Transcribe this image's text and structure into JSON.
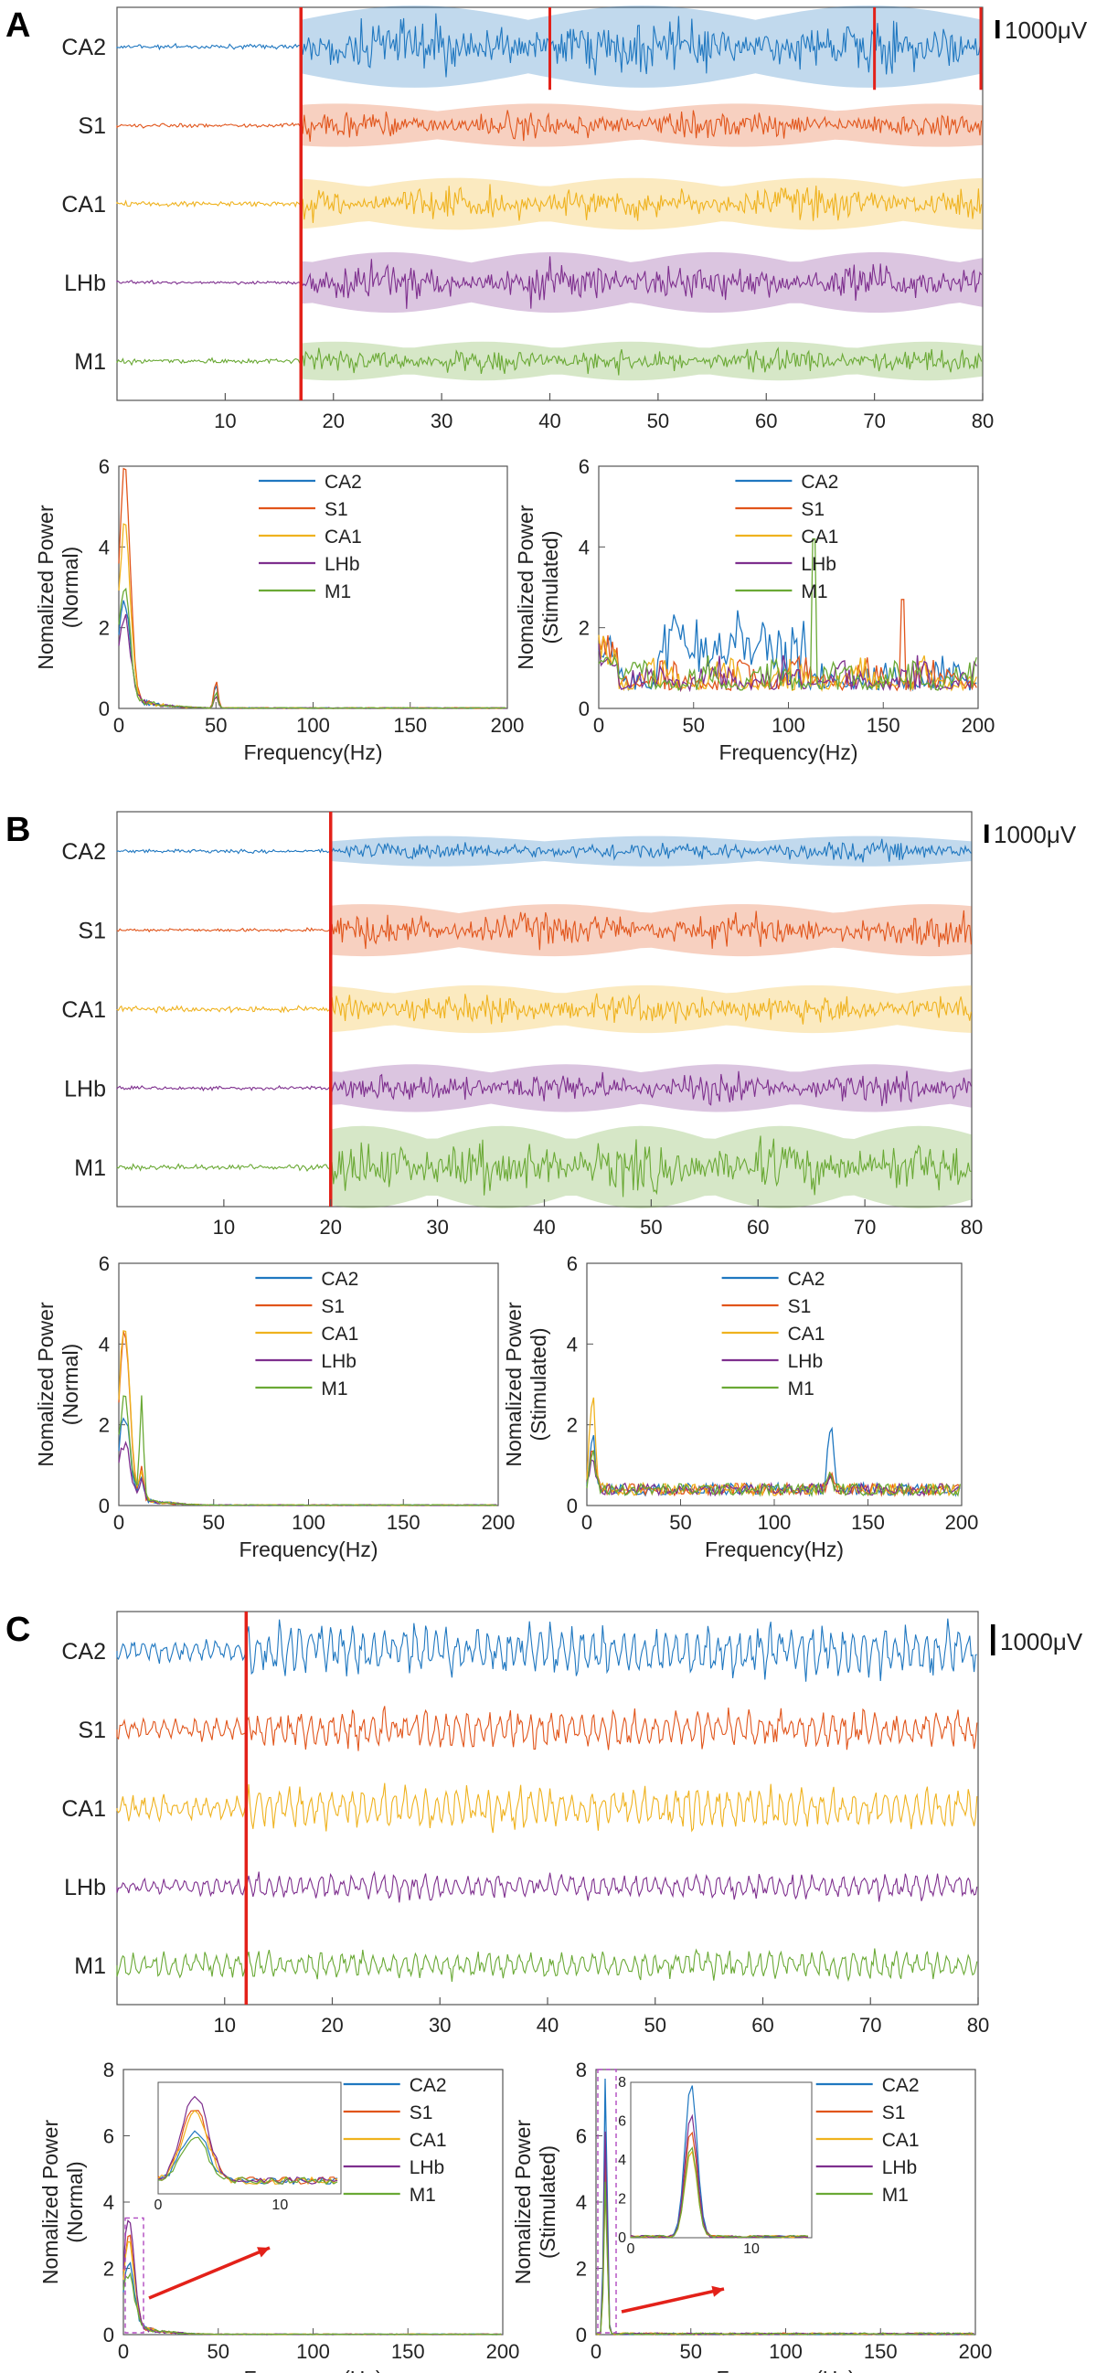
{
  "colors": {
    "CA2": "#1f77c0",
    "S1": "#e1551b",
    "CA1": "#efb21e",
    "LHb": "#7e2f8e",
    "M1": "#6aa935",
    "marker": "#e32119",
    "inset_arrow": "#e32119"
  },
  "panels": [
    {
      "label": "A",
      "scale_label": "1000μV",
      "trace_chart": {
        "type": "line",
        "channels": [
          "CA2",
          "S1",
          "CA1",
          "LHb",
          "M1"
        ],
        "xlim": [
          0,
          80
        ],
        "xticks": [
          10,
          20,
          30,
          40,
          50,
          60,
          70,
          80
        ],
        "xtick_labels": [
          "10",
          "20",
          "30",
          "40",
          "50",
          "60",
          "70",
          "80"
        ],
        "stim_onset": 17,
        "extra_markers_CA2": [
          40,
          70,
          80
        ],
        "pre_amp": [
          0.08,
          0.08,
          0.1,
          0.06,
          0.1
        ],
        "post_amp": [
          0.95,
          0.5,
          0.6,
          0.7,
          0.45
        ],
        "bursty": true
      },
      "spectra": [
        {
          "ylabel_line1": "Nomalized Power",
          "ylabel_line2": "(Normal)",
          "xlabel": "Frequency(Hz)",
          "xlim": [
            0,
            200
          ],
          "ylim": [
            0,
            6
          ],
          "xticks": [
            "0",
            "50",
            "100",
            "150",
            "200"
          ],
          "yticks": [
            "0",
            "2",
            "4",
            "6"
          ],
          "legend": [
            "CA2",
            "S1",
            "CA1",
            "LHb",
            "M1"
          ],
          "peaks": [
            {
              "f": 3,
              "p": [
                2.3,
                5.6,
                4.2,
                2.0,
                2.6
              ]
            },
            {
              "f": 50,
              "p": [
                0.6,
                0.7,
                0.3,
                0.3,
                0.4
              ]
            }
          ],
          "kind": "normal"
        },
        {
          "ylabel_line1": "Nomalized Power",
          "ylabel_line2": "(Stimulated)",
          "xlabel": "Frequency(Hz)",
          "xlim": [
            0,
            200
          ],
          "ylim": [
            0,
            6
          ],
          "xticks": [
            "0",
            "50",
            "100",
            "150",
            "200"
          ],
          "yticks": [
            "0",
            "2",
            "4",
            "6"
          ],
          "legend": [
            "CA2",
            "S1",
            "CA1",
            "LHb",
            "M1"
          ],
          "peaks": [
            {
              "f": 113,
              "p": [
                0.8,
                0.6,
                0.7,
                0.6,
                4.2
              ]
            },
            {
              "f": 160,
              "p": [
                0.5,
                2.7,
                0.5,
                0.6,
                0.4
              ]
            }
          ],
          "kind": "stim_broad"
        }
      ]
    },
    {
      "label": "B",
      "scale_label": "1000μV",
      "trace_chart": {
        "type": "line",
        "channels": [
          "CA2",
          "S1",
          "CA1",
          "LHb",
          "M1"
        ],
        "xlim": [
          0,
          80
        ],
        "xticks": [
          10,
          20,
          30,
          40,
          50,
          60,
          70,
          80
        ],
        "xtick_labels": [
          "10",
          "20",
          "30",
          "40",
          "50",
          "60",
          "70",
          "80"
        ],
        "stim_onset": 20,
        "extra_markers_CA2": [],
        "pre_amp": [
          0.06,
          0.06,
          0.1,
          0.06,
          0.1
        ],
        "post_amp": [
          0.35,
          0.6,
          0.55,
          0.55,
          0.95
        ],
        "bursty": true
      },
      "spectra": [
        {
          "ylabel_line1": "Nomalized Power",
          "ylabel_line2": "(Normal)",
          "xlabel": "Frequency(Hz)",
          "xlim": [
            0,
            200
          ],
          "ylim": [
            0,
            6
          ],
          "xticks": [
            "0",
            "50",
            "100",
            "150",
            "200"
          ],
          "yticks": [
            "0",
            "2",
            "4",
            "6"
          ],
          "legend": [
            "CA2",
            "S1",
            "CA1",
            "LHb",
            "M1"
          ],
          "peaks": [
            {
              "f": 3,
              "p": [
                1.9,
                3.9,
                4.1,
                1.2,
                2.3
              ]
            },
            {
              "f": 12,
              "p": [
                0.6,
                0.8,
                0.7,
                0.5,
                2.5
              ]
            }
          ],
          "kind": "normal_narrow"
        },
        {
          "ylabel_line1": "Nomalized Power",
          "ylabel_line2": "(Stimulated)",
          "xlabel": "Frequency(Hz)",
          "xlim": [
            0,
            200
          ],
          "ylim": [
            0,
            6
          ],
          "xticks": [
            "0",
            "50",
            "100",
            "150",
            "200"
          ],
          "yticks": [
            "0",
            "2",
            "4",
            "6"
          ],
          "legend": [
            "CA2",
            "S1",
            "CA1",
            "LHb",
            "M1"
          ],
          "peaks": [
            {
              "f": 3,
              "p": [
                1.3,
                1.0,
                2.3,
                0.8,
                0.9
              ]
            },
            {
              "f": 130,
              "p": [
                1.6,
                0.3,
                0.4,
                0.3,
                0.3
              ]
            }
          ],
          "kind": "stim_flat"
        }
      ]
    },
    {
      "label": "C",
      "scale_label": "1000μV",
      "trace_chart": {
        "type": "line",
        "channels": [
          "CA2",
          "S1",
          "CA1",
          "LHb",
          "M1"
        ],
        "xlim": [
          0,
          80
        ],
        "xticks": [
          10,
          20,
          30,
          40,
          50,
          60,
          70,
          80
        ],
        "xtick_labels": [
          "10",
          "20",
          "30",
          "40",
          "50",
          "60",
          "70",
          "80"
        ],
        "stim_onset": 12,
        "extra_markers_CA2": [],
        "pre_amp": [
          0.25,
          0.25,
          0.3,
          0.2,
          0.3
        ],
        "post_amp": [
          0.6,
          0.45,
          0.5,
          0.3,
          0.35
        ],
        "bursty": false
      },
      "spectra": [
        {
          "ylabel_line1": "Nomalized Power",
          "ylabel_line2": "(Normal)",
          "xlabel": "Frequency(Hz)",
          "xlim": [
            0,
            200
          ],
          "ylim": [
            0,
            8
          ],
          "xticks": [
            "0",
            "50",
            "100",
            "150",
            "200"
          ],
          "yticks": [
            "0",
            "2",
            "4",
            "6",
            "8"
          ],
          "legend": [
            "CA2",
            "S1",
            "CA1",
            "LHb",
            "M1"
          ],
          "peaks": [
            {
              "f": 3,
              "p": [
                1.8,
                2.6,
                2.4,
                3.1,
                1.5
              ]
            }
          ],
          "kind": "normal_inset",
          "inset": {
            "xlim": [
              0,
              15
            ],
            "xticks": [
              "0",
              "10"
            ],
            "ylim": [
              0,
              4
            ]
          }
        },
        {
          "ylabel_line1": "Nomalized Power",
          "ylabel_line2": "(Stimulated)",
          "xlabel": "Frequency(Hz)",
          "xlim": [
            0,
            200
          ],
          "ylim": [
            0,
            8
          ],
          "xticks": [
            "0",
            "50",
            "100",
            "150",
            "200"
          ],
          "yticks": [
            "0",
            "2",
            "4",
            "6",
            "8"
          ],
          "legend": [
            "CA2",
            "S1",
            "CA1",
            "LHb",
            "M1"
          ],
          "peaks": [
            {
              "f": 5,
              "p": [
                7.9,
                5.5,
                4.5,
                6.3,
                4.7
              ]
            }
          ],
          "kind": "stim_inset",
          "inset": {
            "xlim": [
              0,
              15
            ],
            "xticks": [
              "0",
              "10"
            ],
            "yticks": [
              "0",
              "2",
              "4",
              "6",
              "8"
            ],
            "ylim": [
              0,
              8
            ]
          }
        }
      ]
    }
  ]
}
